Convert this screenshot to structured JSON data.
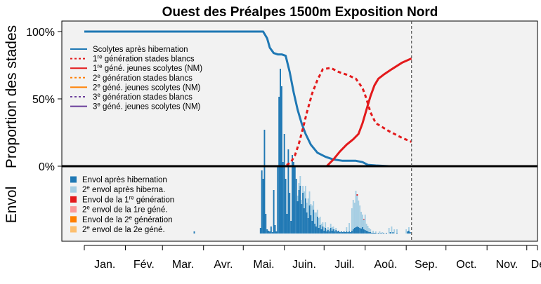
{
  "chart_data": {
    "type": "line",
    "title": "Ouest des Préalpes 1500m Exposition Nord",
    "ylabel_top": "Proportion des stades",
    "ylabel_bottom": "Envol",
    "xlim": [
      0,
      365
    ],
    "ylim_top": [
      0,
      100
    ],
    "yticks_top": [
      {
        "value": 0,
        "label": "0%"
      },
      {
        "value": 50,
        "label": "50%"
      },
      {
        "value": 100,
        "label": "100%"
      }
    ],
    "x_month_labels": [
      "Jan.",
      "Fév.",
      "Mar.",
      "Avr.",
      "Mai.",
      "Juin.",
      "Juil.",
      "Aoû.",
      "Sep.",
      "Oct.",
      "Nov.",
      "Déc"
    ],
    "current_day": 247,
    "colors": {
      "panel_bg": "#f2f2f2",
      "hibernation": "#1f78b4",
      "hibernation_light": "#a6cee3",
      "gen1": "#e31a1c",
      "gen1_light": "#fb9a99",
      "gen2": "#ff7f00",
      "gen2_light": "#fdbf6f",
      "gen3": "#6a3d9a"
    },
    "legend_top": [
      {
        "label": "Scolytes après hibernation",
        "color": "#1f78b4",
        "dash": "solid"
      },
      {
        "label": "1re génération stades blancs",
        "color": "#e31a1c",
        "dash": "dotted"
      },
      {
        "label": "1re géné. jeunes scolytes (NM)",
        "color": "#e31a1c",
        "dash": "solid"
      },
      {
        "label": "2e génération stades blancs",
        "color": "#ff7f00",
        "dash": "dotted"
      },
      {
        "label": "2e géné. jeunes scolytes (NM)",
        "color": "#ff7f00",
        "dash": "solid"
      },
      {
        "label": "3e génération stades blancs",
        "color": "#6a3d9a",
        "dash": "dotted"
      },
      {
        "label": "3e géné. jeunes scolytes (NM)",
        "color": "#6a3d9a",
        "dash": "solid"
      }
    ],
    "legend_bottom": [
      {
        "label": "Envol après hibernation",
        "color": "#1f78b4"
      },
      {
        "label": "2e envol après hiberna.",
        "color": "#a6cee3"
      },
      {
        "label": "Envol de la 1re génération",
        "color": "#e31a1c"
      },
      {
        "label": "2e envol de la 1re géné.",
        "color": "#fb9a99"
      },
      {
        "label": "Envol de la 2e génération",
        "color": "#ff7f00"
      },
      {
        "label": "2e envol de la 2e géné.",
        "color": "#fdbf6f"
      }
    ],
    "series": [
      {
        "name": "Scolytes après hibernation",
        "color": "#1f78b4",
        "dash": "solid",
        "x": [
          0,
          60,
          100,
          135,
          138,
          140,
          143,
          146,
          149,
          152,
          155,
          158,
          161,
          164,
          167,
          171,
          176,
          182,
          188,
          195,
          205,
          210,
          214,
          220,
          230,
          247
        ],
        "y": [
          100,
          100,
          100,
          100,
          95,
          88,
          84,
          83,
          83,
          82,
          70,
          55,
          42,
          32,
          24,
          16,
          10,
          7,
          5,
          4,
          4,
          3,
          1,
          0.5,
          0,
          0
        ]
      },
      {
        "name": "1re génération stades blancs",
        "color": "#e31a1c",
        "dash": "dotted",
        "x": [
          0,
          150,
          153,
          156,
          159,
          162,
          165,
          168,
          172,
          176,
          180,
          186,
          192,
          198,
          205,
          210,
          213,
          216,
          220,
          230,
          240,
          247
        ],
        "y": [
          0,
          0,
          1,
          3,
          8,
          17,
          28,
          40,
          54,
          64,
          72,
          73,
          70,
          68,
          65,
          58,
          50,
          40,
          32,
          26,
          21,
          18
        ]
      },
      {
        "name": "1re géné. jeunes scolytes (NM)",
        "color": "#e31a1c",
        "dash": "solid",
        "x": [
          0,
          183,
          188,
          193,
          198,
          203,
          207,
          210,
          213,
          216,
          219,
          222,
          226,
          232,
          240,
          247
        ],
        "y": [
          0,
          0,
          5,
          11,
          16,
          20,
          24,
          32,
          42,
          52,
          60,
          65,
          68,
          72,
          77,
          80
        ]
      }
    ],
    "envol_bars": [
      {
        "day": 83,
        "value": 3,
        "color": "#1f78b4"
      },
      {
        "day": 133,
        "value": 8,
        "color": "#1f78b4"
      },
      {
        "day": 134,
        "value": 90,
        "color": "#1f78b4"
      },
      {
        "day": 135,
        "value": 78,
        "color": "#1f78b4"
      },
      {
        "day": 136,
        "value": 148,
        "color": "#1f78b4"
      },
      {
        "day": 137,
        "value": 28,
        "color": "#1f78b4"
      },
      {
        "day": 138,
        "value": 6,
        "color": "#1f78b4"
      },
      {
        "day": 139,
        "value": 4,
        "color": "#1f78b4"
      },
      {
        "day": 140,
        "value": 3,
        "color": "#1f78b4"
      },
      {
        "day": 141,
        "value": 10,
        "color": "#1f78b4"
      },
      {
        "day": 142,
        "value": 2,
        "color": "#1f78b4"
      },
      {
        "day": 143,
        "value": 62,
        "color": "#1f78b4"
      },
      {
        "day": 144,
        "value": 12,
        "color": "#1f78b4"
      },
      {
        "day": 145,
        "value": 3,
        "color": "#1f78b4"
      },
      {
        "day": 146,
        "value": 95,
        "color": "#1f78b4"
      },
      {
        "day": 147,
        "value": 195,
        "color": "#1f78b4"
      },
      {
        "day": 148,
        "value": 235,
        "color": "#1f78b4"
      },
      {
        "day": 149,
        "value": 210,
        "color": "#1f78b4"
      },
      {
        "day": 150,
        "value": 102,
        "color": "#1f78b4"
      },
      {
        "day": 151,
        "value": 142,
        "color": "#1f78b4"
      },
      {
        "day": 152,
        "value": 78,
        "color": "#1f78b4"
      },
      {
        "day": 153,
        "value": 28,
        "color": "#1f78b4"
      },
      {
        "day": 154,
        "value": 120,
        "color": "#1f78b4"
      },
      {
        "day": 155,
        "value": 58,
        "color": "#1f78b4"
      },
      {
        "day": 156,
        "value": 18,
        "color": "#1f78b4"
      },
      {
        "day": 157,
        "value": 112,
        "color": "#1f78b4"
      },
      {
        "day": 158,
        "value": 102,
        "color": "#1f78b4"
      },
      {
        "day": 159,
        "value": 96,
        "color": "#1f78b4"
      },
      {
        "day": 160,
        "value": 78,
        "color": "#1f78b4"
      },
      {
        "day": 161,
        "value": 46,
        "color": "#1f78b4"
      },
      {
        "day": 162,
        "value": 62,
        "color": "#1f78b4"
      },
      {
        "day": 163,
        "value": 68,
        "color": "#1f78b4"
      },
      {
        "day": 164,
        "value": 42,
        "color": "#1f78b4"
      },
      {
        "day": 165,
        "value": 58,
        "color": "#1f78b4"
      },
      {
        "day": 166,
        "value": 36,
        "color": "#1f78b4"
      },
      {
        "day": 167,
        "value": 50,
        "color": "#1f78b4"
      },
      {
        "day": 168,
        "value": 30,
        "color": "#1f78b4"
      },
      {
        "day": 169,
        "value": 22,
        "color": "#1f78b4"
      },
      {
        "day": 170,
        "value": 40,
        "color": "#1f78b4"
      },
      {
        "day": 171,
        "value": 26,
        "color": "#1f78b4"
      },
      {
        "day": 172,
        "value": 18,
        "color": "#1f78b4"
      },
      {
        "day": 173,
        "value": 34,
        "color": "#1f78b4"
      },
      {
        "day": 174,
        "value": 14,
        "color": "#1f78b4"
      },
      {
        "day": 175,
        "value": 10,
        "color": "#1f78b4"
      },
      {
        "day": 176,
        "value": 24,
        "color": "#1f78b4"
      },
      {
        "day": 177,
        "value": 8,
        "color": "#1f78b4"
      },
      {
        "day": 178,
        "value": 12,
        "color": "#1f78b4"
      },
      {
        "day": 179,
        "value": 6,
        "color": "#1f78b4"
      },
      {
        "day": 180,
        "value": 10,
        "color": "#1f78b4"
      },
      {
        "day": 181,
        "value": 4,
        "color": "#1f78b4"
      },
      {
        "day": 182,
        "value": 8,
        "color": "#1f78b4"
      },
      {
        "day": 183,
        "value": 3,
        "color": "#1f78b4"
      },
      {
        "day": 184,
        "value": 5,
        "color": "#1f78b4"
      },
      {
        "day": 185,
        "value": 3,
        "color": "#1f78b4"
      },
      {
        "day": 186,
        "value": 8,
        "color": "#1f78b4"
      },
      {
        "day": 187,
        "value": 4,
        "color": "#1f78b4"
      },
      {
        "day": 188,
        "value": 6,
        "color": "#1f78b4"
      },
      {
        "day": 189,
        "value": 3,
        "color": "#1f78b4"
      },
      {
        "day": 190,
        "value": 5,
        "color": "#1f78b4"
      },
      {
        "day": 191,
        "value": 3,
        "color": "#1f78b4"
      },
      {
        "day": 192,
        "value": 4,
        "color": "#1f78b4"
      },
      {
        "day": 193,
        "value": 2,
        "color": "#1f78b4"
      },
      {
        "day": 194,
        "value": 3,
        "color": "#1f78b4"
      },
      {
        "day": 195,
        "value": 2,
        "color": "#1f78b4"
      },
      {
        "day": 196,
        "value": 3,
        "color": "#1f78b4"
      },
      {
        "day": 197,
        "value": 2,
        "color": "#1f78b4"
      },
      {
        "day": 198,
        "value": 3,
        "color": "#1f78b4"
      },
      {
        "day": 199,
        "value": 2,
        "color": "#1f78b4"
      },
      {
        "day": 200,
        "value": 3,
        "color": "#1f78b4"
      },
      {
        "day": 201,
        "value": 2,
        "color": "#1f78b4"
      },
      {
        "day": 202,
        "value": 4,
        "color": "#1f78b4"
      },
      {
        "day": 203,
        "value": 6,
        "color": "#1f78b4"
      },
      {
        "day": 204,
        "value": 8,
        "color": "#1f78b4"
      },
      {
        "day": 205,
        "value": 9,
        "color": "#1f78b4"
      },
      {
        "day": 206,
        "value": 10,
        "color": "#1f78b4"
      },
      {
        "day": 207,
        "value": 9,
        "color": "#1f78b4"
      },
      {
        "day": 208,
        "value": 8,
        "color": "#1f78b4"
      },
      {
        "day": 209,
        "value": 7,
        "color": "#1f78b4"
      },
      {
        "day": 210,
        "value": 9,
        "color": "#1f78b4"
      },
      {
        "day": 211,
        "value": 6,
        "color": "#1f78b4"
      },
      {
        "day": 212,
        "value": 5,
        "color": "#1f78b4"
      },
      {
        "day": 213,
        "value": 4,
        "color": "#1f78b4"
      },
      {
        "day": 214,
        "value": 3,
        "color": "#1f78b4"
      },
      {
        "day": 215,
        "value": 2,
        "color": "#1f78b4"
      },
      {
        "day": 216,
        "value": 2,
        "color": "#1f78b4"
      },
      {
        "day": 217,
        "value": 1,
        "color": "#1f78b4"
      },
      {
        "day": 218,
        "value": 1,
        "color": "#1f78b4"
      },
      {
        "day": 219,
        "value": 1,
        "color": "#1f78b4"
      },
      {
        "day": 220,
        "value": 1,
        "color": "#1f78b4"
      },
      {
        "day": 222,
        "value": 1,
        "color": "#1f78b4"
      },
      {
        "day": 224,
        "value": 1,
        "color": "#1f78b4"
      },
      {
        "day": 226,
        "value": 1,
        "color": "#1f78b4"
      },
      {
        "day": 228,
        "value": 1,
        "color": "#1f78b4"
      },
      {
        "day": 231,
        "value": 2,
        "color": "#1f78b4"
      },
      {
        "day": 233,
        "value": 2,
        "color": "#1f78b4"
      },
      {
        "day": 236,
        "value": 1,
        "color": "#1f78b4"
      },
      {
        "day": 244,
        "value": 3,
        "color": "#1f78b4"
      },
      {
        "day": 245,
        "value": 4,
        "color": "#1f78b4"
      },
      {
        "day": 246,
        "value": 2,
        "color": "#1f78b4"
      },
      {
        "day": 161,
        "value": 8,
        "color": "#a6cee3"
      },
      {
        "day": 162,
        "value": 10,
        "color": "#a6cee3"
      },
      {
        "day": 163,
        "value": 14,
        "color": "#a6cee3"
      },
      {
        "day": 164,
        "value": 6,
        "color": "#a6cee3"
      },
      {
        "day": 165,
        "value": 10,
        "color": "#a6cee3"
      },
      {
        "day": 166,
        "value": 24,
        "color": "#a6cee3"
      },
      {
        "day": 167,
        "value": 18,
        "color": "#a6cee3"
      },
      {
        "day": 168,
        "value": 14,
        "color": "#a6cee3"
      },
      {
        "day": 169,
        "value": 28,
        "color": "#a6cee3"
      },
      {
        "day": 170,
        "value": 20,
        "color": "#a6cee3"
      },
      {
        "day": 171,
        "value": 16,
        "color": "#a6cee3"
      },
      {
        "day": 172,
        "value": 22,
        "color": "#a6cee3"
      },
      {
        "day": 173,
        "value": 12,
        "color": "#a6cee3"
      },
      {
        "day": 174,
        "value": 16,
        "color": "#a6cee3"
      },
      {
        "day": 175,
        "value": 20,
        "color": "#a6cee3"
      },
      {
        "day": 176,
        "value": 10,
        "color": "#a6cee3"
      },
      {
        "day": 177,
        "value": 14,
        "color": "#a6cee3"
      },
      {
        "day": 178,
        "value": 12,
        "color": "#a6cee3"
      },
      {
        "day": 179,
        "value": 8,
        "color": "#a6cee3"
      },
      {
        "day": 180,
        "value": 6,
        "color": "#a6cee3"
      },
      {
        "day": 181,
        "value": 5,
        "color": "#a6cee3"
      },
      {
        "day": 182,
        "value": 8,
        "color": "#a6cee3"
      },
      {
        "day": 183,
        "value": 3,
        "color": "#a6cee3"
      },
      {
        "day": 184,
        "value": 4,
        "color": "#a6cee3"
      },
      {
        "day": 185,
        "value": 3,
        "color": "#a6cee3"
      },
      {
        "day": 186,
        "value": 6,
        "color": "#a6cee3"
      },
      {
        "day": 187,
        "value": 5,
        "color": "#a6cee3"
      },
      {
        "day": 188,
        "value": 4,
        "color": "#a6cee3"
      },
      {
        "day": 189,
        "value": 3,
        "color": "#a6cee3"
      },
      {
        "day": 190,
        "value": 3,
        "color": "#a6cee3"
      },
      {
        "day": 198,
        "value": 6,
        "color": "#a6cee3"
      },
      {
        "day": 200,
        "value": 12,
        "color": "#a6cee3"
      },
      {
        "day": 202,
        "value": 32,
        "color": "#a6cee3"
      },
      {
        "day": 203,
        "value": 42,
        "color": "#a6cee3"
      },
      {
        "day": 204,
        "value": 36,
        "color": "#a6cee3"
      },
      {
        "day": 205,
        "value": 52,
        "color": "#a6cee3"
      },
      {
        "day": 206,
        "value": 44,
        "color": "#a6cee3"
      },
      {
        "day": 207,
        "value": 38,
        "color": "#a6cee3"
      },
      {
        "day": 208,
        "value": 32,
        "color": "#a6cee3"
      },
      {
        "day": 209,
        "value": 24,
        "color": "#a6cee3"
      },
      {
        "day": 210,
        "value": 18,
        "color": "#a6cee3"
      },
      {
        "day": 211,
        "value": 14,
        "color": "#a6cee3"
      },
      {
        "day": 212,
        "value": 22,
        "color": "#a6cee3"
      },
      {
        "day": 213,
        "value": 10,
        "color": "#a6cee3"
      },
      {
        "day": 214,
        "value": 8,
        "color": "#a6cee3"
      },
      {
        "day": 215,
        "value": 6,
        "color": "#a6cee3"
      },
      {
        "day": 216,
        "value": 4,
        "color": "#a6cee3"
      },
      {
        "day": 218,
        "value": 3,
        "color": "#a6cee3"
      },
      {
        "day": 220,
        "value": 2,
        "color": "#a6cee3"
      },
      {
        "day": 223,
        "value": 3,
        "color": "#a6cee3"
      },
      {
        "day": 225,
        "value": 2,
        "color": "#a6cee3"
      },
      {
        "day": 230,
        "value": 8,
        "color": "#a6cee3"
      },
      {
        "day": 232,
        "value": 10,
        "color": "#a6cee3"
      },
      {
        "day": 234,
        "value": 6,
        "color": "#a6cee3"
      },
      {
        "day": 236,
        "value": 5,
        "color": "#a6cee3"
      },
      {
        "day": 243,
        "value": 6,
        "color": "#a6cee3"
      },
      {
        "day": 245,
        "value": 5,
        "color": "#a6cee3"
      },
      {
        "day": 206,
        "value": 2,
        "color": "#e31a1c"
      },
      {
        "day": 211,
        "value": 1,
        "color": "#e31a1c"
      }
    ]
  }
}
